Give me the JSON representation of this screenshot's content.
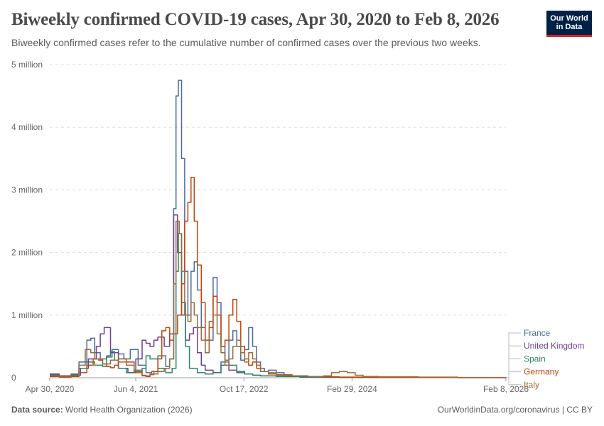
{
  "title": "Biweekly confirmed COVID-19 cases, Apr 30, 2020 to Feb 8, 2026",
  "subtitle": "Biweekly confirmed cases refer to the cumulative number of confirmed cases over the previous two weeks.",
  "logo": {
    "line1": "Our World",
    "line2": "in Data",
    "bg": "#002147",
    "accent": "#ce261e"
  },
  "footer": {
    "source_label": "Data source:",
    "source_text": "World Health Organization (2026)",
    "right_text": "OurWorldinData.org/coronavirus | CC BY"
  },
  "chart_data": {
    "type": "line",
    "title": "Biweekly confirmed COVID-19 cases, Apr 30, 2020 to Feb 8, 2026",
    "xlabel": "",
    "ylabel": "",
    "xlim": [
      2020.33,
      2026.11
    ],
    "ylim": [
      0,
      5000000
    ],
    "yticks": [
      {
        "value": 0,
        "label": "0"
      },
      {
        "value": 1000000,
        "label": "1 million"
      },
      {
        "value": 2000000,
        "label": "2 million"
      },
      {
        "value": 3000000,
        "label": "3 million"
      },
      {
        "value": 4000000,
        "label": "4 million"
      },
      {
        "value": 5000000,
        "label": "5 million"
      }
    ],
    "xticks": [
      {
        "value": 2020.33,
        "label": "Apr 30, 2020"
      },
      {
        "value": 2021.42,
        "label": "Jun 4, 2021"
      },
      {
        "value": 2022.79,
        "label": "Oct 17, 2022"
      },
      {
        "value": 2024.16,
        "label": "Feb 29, 2024"
      },
      {
        "value": 2026.11,
        "label": "Feb 8, 2026"
      }
    ],
    "grid": true,
    "legend_position": "right",
    "series": [
      {
        "name": "France",
        "color": "#4c6a9c",
        "x": [
          2020.33,
          2020.45,
          2020.6,
          2020.7,
          2020.8,
          2020.85,
          2020.9,
          2020.97,
          2021.05,
          2021.12,
          2021.2,
          2021.27,
          2021.35,
          2021.45,
          2021.55,
          2021.62,
          2021.7,
          2021.8,
          2021.85,
          2021.9,
          2021.93,
          2021.96,
          2022.0,
          2022.04,
          2022.08,
          2022.12,
          2022.16,
          2022.2,
          2022.25,
          2022.3,
          2022.35,
          2022.4,
          2022.45,
          2022.5,
          2022.55,
          2022.6,
          2022.65,
          2022.7,
          2022.75,
          2022.8,
          2022.85,
          2022.9,
          2022.95,
          2023.0,
          2023.05,
          2023.1,
          2023.2,
          2023.3,
          2023.4,
          2023.6,
          2023.8,
          2024.0,
          2024.2,
          2024.6,
          2025.0,
          2025.5,
          2026.11
        ],
        "values": [
          50000,
          30000,
          60000,
          250000,
          600000,
          630000,
          400000,
          300000,
          330000,
          450000,
          380000,
          300000,
          450000,
          200000,
          80000,
          100000,
          350000,
          180000,
          300000,
          2700000,
          4500000,
          4750000,
          3500000,
          1700000,
          1000000,
          1700000,
          1850000,
          1400000,
          800000,
          400000,
          600000,
          1600000,
          1200000,
          500000,
          280000,
          600000,
          750000,
          500000,
          280000,
          450000,
          800000,
          500000,
          250000,
          150000,
          100000,
          120000,
          80000,
          40000,
          20000,
          15000,
          10000,
          8000,
          5000,
          3000,
          2000,
          1500,
          1000
        ]
      },
      {
        "name": "United Kingdom",
        "color": "#6d3e91",
        "x": [
          2020.33,
          2020.45,
          2020.6,
          2020.72,
          2020.82,
          2020.92,
          2020.97,
          2021.02,
          2021.1,
          2021.2,
          2021.32,
          2021.42,
          2021.5,
          2021.55,
          2021.6,
          2021.65,
          2021.7,
          2021.78,
          2021.85,
          2021.9,
          2021.95,
          2022.0,
          2022.05,
          2022.1,
          2022.15,
          2022.2,
          2022.25,
          2022.3,
          2022.4,
          2022.5,
          2022.6,
          2022.7,
          2022.8,
          2022.9,
          2023.0,
          2023.2,
          2023.5,
          2024.0,
          2024.5,
          2025.0,
          2025.5,
          2026.11
        ],
        "values": [
          60000,
          30000,
          40000,
          150000,
          300000,
          500000,
          700000,
          800000,
          400000,
          150000,
          80000,
          300000,
          600000,
          550000,
          500000,
          600000,
          650000,
          500000,
          700000,
          2600000,
          2000000,
          1000000,
          600000,
          700000,
          800000,
          400000,
          200000,
          120000,
          80000,
          200000,
          120000,
          80000,
          60000,
          40000,
          30000,
          20000,
          10000,
          5000,
          3000,
          2000,
          1000,
          500
        ]
      },
      {
        "name": "Spain",
        "color": "#2b8465",
        "x": [
          2020.33,
          2020.45,
          2020.6,
          2020.7,
          2020.8,
          2020.9,
          2021.0,
          2021.05,
          2021.1,
          2021.15,
          2021.2,
          2021.3,
          2021.4,
          2021.5,
          2021.55,
          2021.6,
          2021.7,
          2021.8,
          2021.88,
          2021.93,
          2021.96,
          2022.0,
          2022.05,
          2022.1,
          2022.2,
          2022.3,
          2022.4,
          2022.5,
          2022.6,
          2022.7,
          2022.8,
          2022.9,
          2023.0,
          2023.2,
          2023.5,
          2024.0,
          2024.5,
          2025.0,
          2026.11
        ],
        "values": [
          40000,
          20000,
          50000,
          150000,
          250000,
          200000,
          180000,
          350000,
          420000,
          280000,
          150000,
          80000,
          100000,
          150000,
          350000,
          300000,
          150000,
          80000,
          150000,
          1700000,
          2300000,
          1200000,
          500000,
          150000,
          80000,
          60000,
          80000,
          250000,
          200000,
          100000,
          60000,
          40000,
          30000,
          20000,
          10000,
          5000,
          3000,
          2000,
          1000
        ]
      },
      {
        "name": "Germany",
        "color": "#c0450e",
        "x": [
          2020.33,
          2020.45,
          2020.6,
          2020.7,
          2020.8,
          2020.88,
          2020.95,
          2021.0,
          2021.05,
          2021.1,
          2021.15,
          2021.2,
          2021.3,
          2021.4,
          2021.5,
          2021.55,
          2021.6,
          2021.65,
          2021.7,
          2021.75,
          2021.8,
          2021.85,
          2021.9,
          2021.95,
          2022.0,
          2022.04,
          2022.08,
          2022.12,
          2022.16,
          2022.2,
          2022.25,
          2022.3,
          2022.35,
          2022.4,
          2022.45,
          2022.5,
          2022.55,
          2022.6,
          2022.65,
          2022.7,
          2022.75,
          2022.8,
          2022.85,
          2022.9,
          2022.95,
          2023.0,
          2023.1,
          2023.2,
          2023.4,
          2023.6,
          2023.8,
          2024.0,
          2024.4,
          2025.0,
          2025.5,
          2026.11
        ],
        "values": [
          20000,
          10000,
          20000,
          80000,
          200000,
          300000,
          280000,
          220000,
          180000,
          160000,
          200000,
          300000,
          250000,
          80000,
          30000,
          20000,
          50000,
          100000,
          300000,
          750000,
          800000,
          600000,
          700000,
          1000000,
          1500000,
          2500000,
          2800000,
          3200000,
          2500000,
          1800000,
          1200000,
          600000,
          800000,
          1300000,
          1000000,
          500000,
          600000,
          1000000,
          1250000,
          900000,
          500000,
          300000,
          200000,
          250000,
          150000,
          100000,
          60000,
          40000,
          30000,
          20000,
          15000,
          10000,
          5000,
          3000,
          2000,
          1000
        ]
      },
      {
        "name": "Italy",
        "color": "#9a6a3c",
        "x": [
          2020.33,
          2020.45,
          2020.6,
          2020.7,
          2020.78,
          2020.85,
          2020.9,
          2021.0,
          2021.1,
          2021.2,
          2021.3,
          2021.4,
          2021.5,
          2021.55,
          2021.6,
          2021.7,
          2021.78,
          2021.85,
          2021.9,
          2021.93,
          2021.97,
          2022.0,
          2022.04,
          2022.08,
          2022.12,
          2022.16,
          2022.2,
          2022.25,
          2022.3,
          2022.35,
          2022.4,
          2022.45,
          2022.5,
          2022.55,
          2022.6,
          2022.65,
          2022.7,
          2022.75,
          2022.8,
          2022.85,
          2022.9,
          2022.95,
          2023.0,
          2023.1,
          2023.2,
          2023.4,
          2023.6,
          2023.8,
          2023.9,
          2024.0,
          2024.1,
          2024.2,
          2024.3,
          2024.5,
          2025.0,
          2025.5,
          2026.11
        ],
        "values": [
          30000,
          20000,
          30000,
          200000,
          450000,
          400000,
          300000,
          220000,
          280000,
          250000,
          200000,
          120000,
          40000,
          30000,
          60000,
          100000,
          150000,
          300000,
          1500000,
          2500000,
          2300000,
          1700000,
          1000000,
          900000,
          1200000,
          1000000,
          800000,
          600000,
          400000,
          900000,
          1000000,
          700000,
          400000,
          200000,
          300000,
          500000,
          600000,
          400000,
          250000,
          400000,
          300000,
          200000,
          100000,
          80000,
          50000,
          30000,
          20000,
          30000,
          80000,
          100000,
          80000,
          40000,
          20000,
          15000,
          10000,
          5000,
          2000
        ]
      }
    ]
  }
}
